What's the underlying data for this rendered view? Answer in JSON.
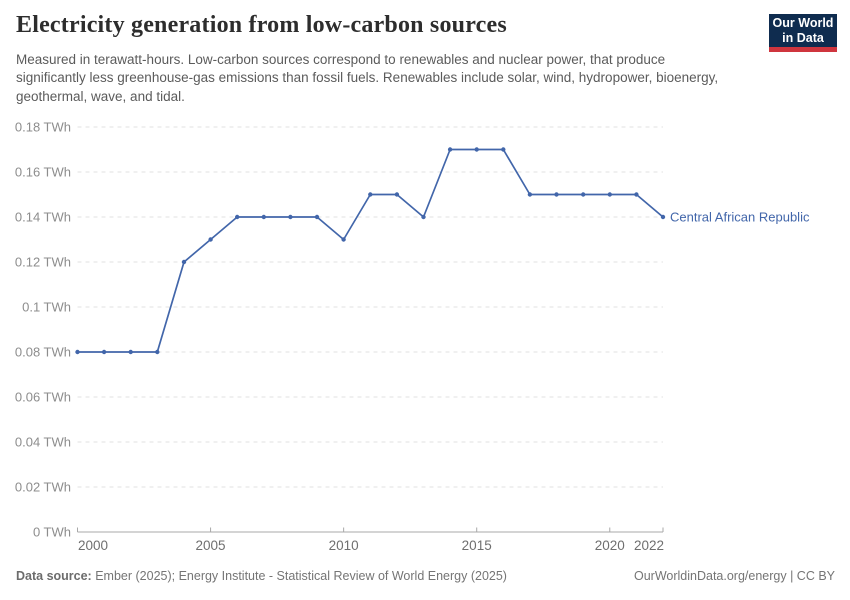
{
  "header": {
    "title": "Electricity generation from low-carbon sources",
    "subtitle": "Measured in terawatt-hours. Low-carbon sources correspond to renewables and nuclear power, that produce significantly less greenhouse-gas emissions than fossil fuels. Renewables include solar, wind, hydropower, bioenergy, geothermal, wave, and tidal."
  },
  "logo": {
    "line1": "Our World",
    "line2": "in Data",
    "bg_color": "#0f2c4f",
    "stripe_color": "#cf353e"
  },
  "chart_data": {
    "type": "line",
    "title": "Electricity generation from low-carbon sources",
    "unit": "TWh",
    "xlabel": "",
    "ylabel": "",
    "xlim": [
      2000,
      2022
    ],
    "ylim": [
      0,
      0.18
    ],
    "grid": "horizontal-dashed",
    "legend_position": "right-of-line-end",
    "x": [
      2000,
      2001,
      2002,
      2003,
      2004,
      2005,
      2006,
      2007,
      2008,
      2009,
      2010,
      2011,
      2012,
      2013,
      2014,
      2015,
      2016,
      2017,
      2018,
      2019,
      2020,
      2021,
      2022
    ],
    "series": [
      {
        "name": "Central African Republic",
        "color": "#4266aa",
        "values": [
          0.08,
          0.08,
          0.08,
          0.08,
          0.12,
          0.13,
          0.14,
          0.14,
          0.14,
          0.14,
          0.13,
          0.15,
          0.15,
          0.14,
          0.17,
          0.17,
          0.17,
          0.15,
          0.15,
          0.15,
          0.15,
          0.15,
          0.14
        ]
      }
    ],
    "yticks": [
      {
        "value": 0,
        "label": "0 TWh"
      },
      {
        "value": 0.02,
        "label": "0.02 TWh"
      },
      {
        "value": 0.04,
        "label": "0.04 TWh"
      },
      {
        "value": 0.06,
        "label": "0.06 TWh"
      },
      {
        "value": 0.08,
        "label": "0.08 TWh"
      },
      {
        "value": 0.1,
        "label": "0.1 TWh"
      },
      {
        "value": 0.12,
        "label": "0.12 TWh"
      },
      {
        "value": 0.14,
        "label": "0.14 TWh"
      },
      {
        "value": 0.16,
        "label": "0.16 TWh"
      },
      {
        "value": 0.18,
        "label": "0.18 TWh"
      }
    ],
    "xticks": [
      {
        "value": 2000,
        "label": "2000"
      },
      {
        "value": 2005,
        "label": "2005"
      },
      {
        "value": 2010,
        "label": "2010"
      },
      {
        "value": 2015,
        "label": "2015"
      },
      {
        "value": 2020,
        "label": "2020"
      },
      {
        "value": 2022,
        "label": "2022"
      }
    ]
  },
  "footer": {
    "datasource_label": "Data source:",
    "datasource_text": " Ember (2025); Energy Institute - Statistical Review of World Energy (2025)",
    "link": "OurWorldinData.org/energy | CC BY"
  }
}
